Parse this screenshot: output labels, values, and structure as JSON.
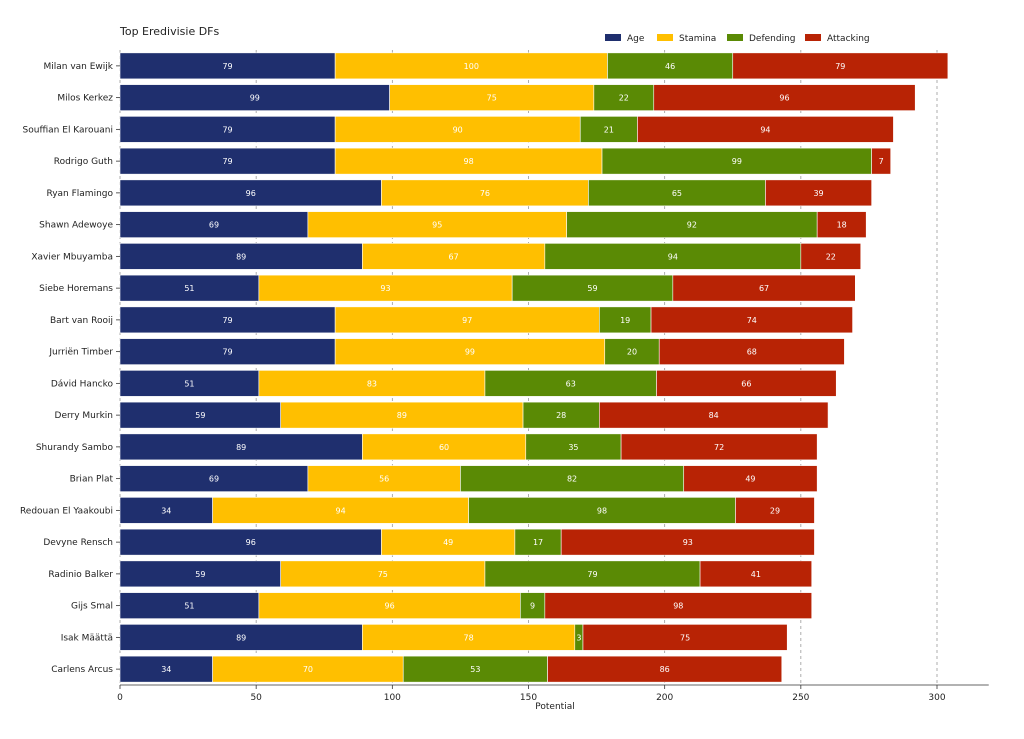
{
  "chart_data": {
    "type": "bar",
    "orientation": "horizontal",
    "stacked": true,
    "title": "Top Eredivisie DFs",
    "xlabel": "Potential",
    "ylabel": "",
    "xlim": [
      0,
      319
    ],
    "xticks": [
      0,
      50,
      100,
      150,
      200,
      250,
      300
    ],
    "grid": "vertical dashed",
    "legend_position": "top-right",
    "categories": [
      "Milan van Ewijk",
      "Milos Kerkez",
      "Souffian El Karouani",
      "Rodrigo Guth",
      "Ryan Flamingo",
      "Shawn Adewoye",
      "Xavier Mbuyamba",
      "Siebe Horemans",
      "Bart van Rooij",
      "Jurriën Timber",
      "Dávid Hancko",
      "Derry Murkin",
      "Shurandy Sambo",
      "Brian Plat",
      "Redouan El Yaakoubi",
      "Devyne Rensch",
      "Radinio Balker",
      "Gijs Smal",
      "Isak Määttä",
      "Carlens Arcus"
    ],
    "series": [
      {
        "name": "Age",
        "color": "#1f2f6e",
        "values": [
          79,
          99,
          79,
          79,
          96,
          69,
          89,
          51,
          79,
          79,
          51,
          59,
          89,
          69,
          34,
          96,
          59,
          51,
          89,
          34
        ]
      },
      {
        "name": "Stamina",
        "color": "#ffbf00",
        "values": [
          100,
          75,
          90,
          98,
          76,
          95,
          67,
          93,
          97,
          99,
          83,
          89,
          60,
          56,
          94,
          49,
          75,
          96,
          78,
          70
        ]
      },
      {
        "name": "Defending",
        "color": "#5a8a05",
        "values": [
          46,
          22,
          21,
          99,
          65,
          92,
          94,
          59,
          19,
          20,
          63,
          28,
          35,
          82,
          98,
          17,
          79,
          9,
          3,
          53
        ]
      },
      {
        "name": "Attacking",
        "color": "#b82305",
        "values": [
          79,
          96,
          94,
          7,
          39,
          18,
          22,
          67,
          74,
          68,
          66,
          84,
          72,
          49,
          29,
          93,
          41,
          98,
          75,
          86
        ]
      }
    ]
  }
}
